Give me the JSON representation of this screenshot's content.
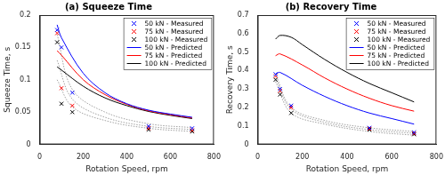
{
  "chart_data": [
    {
      "type": "line",
      "title": "(a) Squeeze Time",
      "x_label": "Rotation Speed, rpm",
      "y_label": "Squeeze Time, s",
      "xlim": [
        0,
        800
      ],
      "xticks": [
        0,
        200,
        400,
        600,
        800
      ],
      "ylim": [
        0,
        0.2
      ],
      "yticks": [
        0,
        0.05,
        0.1,
        0.15,
        0.2
      ],
      "grid": false,
      "legend": "upper right",
      "series": [
        {
          "name": "50 kN - Measured",
          "color": "#0000ff",
          "type": "scatter",
          "marker": "x",
          "x": [
            80,
            100,
            150,
            500,
            700
          ],
          "values": [
            0.177,
            0.15,
            0.08,
            0.028,
            0.025
          ]
        },
        {
          "name": "75 kN - Measured",
          "color": "#ff0000",
          "type": "scatter",
          "marker": "x",
          "x": [
            80,
            100,
            150,
            500,
            700
          ],
          "values": [
            0.172,
            0.087,
            0.06,
            0.025,
            0.022
          ]
        },
        {
          "name": "100 kN - Measured",
          "color": "#000000",
          "type": "scatter",
          "marker": "x",
          "x": [
            80,
            100,
            150,
            500,
            700
          ],
          "values": [
            0.158,
            0.063,
            0.05,
            0.023,
            0.02
          ]
        },
        {
          "name": "50 kN - Predicted",
          "color": "#0000ff",
          "type": "line",
          "line_style": "solid",
          "x": [
            80,
            100,
            200,
            300,
            400,
            500,
            600,
            700
          ],
          "values": [
            0.185,
            0.165,
            0.11,
            0.08,
            0.063,
            0.053,
            0.047,
            0.042
          ]
        },
        {
          "name": "75 kN - Predicted",
          "color": "#ff0000",
          "type": "line",
          "line_style": "solid",
          "x": [
            80,
            100,
            200,
            300,
            400,
            500,
            600,
            700
          ],
          "values": [
            0.145,
            0.138,
            0.1,
            0.077,
            0.062,
            0.052,
            0.046,
            0.041
          ]
        },
        {
          "name": "100 kN - Predicted",
          "color": "#000000",
          "type": "line",
          "line_style": "solid",
          "x": [
            80,
            100,
            200,
            300,
            400,
            500,
            600,
            700
          ],
          "values": [
            0.12,
            0.115,
            0.09,
            0.072,
            0.06,
            0.051,
            0.045,
            0.04
          ]
        },
        {
          "color": "#a0a0a0",
          "type": "line",
          "line_style": "dotted",
          "x": [
            80,
            150,
            300,
            500,
            700
          ],
          "values": [
            0.17,
            0.085,
            0.05,
            0.032,
            0.026
          ]
        },
        {
          "color": "#a0a0a0",
          "type": "line",
          "line_style": "dotted",
          "x": [
            80,
            150,
            300,
            500,
            700
          ],
          "values": [
            0.13,
            0.07,
            0.042,
            0.028,
            0.023
          ]
        },
        {
          "color": "#a0a0a0",
          "type": "line",
          "line_style": "dotted",
          "x": [
            80,
            150,
            300,
            500,
            700
          ],
          "values": [
            0.1,
            0.058,
            0.037,
            0.025,
            0.02
          ]
        }
      ]
    },
    {
      "type": "line",
      "title": "(b) Recovery Time",
      "x_label": "Rotation Speed, rpm",
      "y_label": "Recovery Time, s",
      "xlim": [
        0,
        800
      ],
      "xticks": [
        0,
        200,
        400,
        600,
        800
      ],
      "ylim": [
        0,
        0.7
      ],
      "yticks": [
        0,
        0.1,
        0.2,
        0.3,
        0.4,
        0.5,
        0.6,
        0.7
      ],
      "grid": false,
      "legend": "upper right",
      "series": [
        {
          "name": "50 kN - Measured",
          "color": "#0000ff",
          "type": "scatter",
          "marker": "x",
          "x": [
            80,
            100,
            150,
            500,
            700
          ],
          "values": [
            0.38,
            0.3,
            0.21,
            0.09,
            0.065
          ]
        },
        {
          "name": "75 kN - Measured",
          "color": "#ff0000",
          "type": "scatter",
          "marker": "x",
          "x": [
            80,
            100,
            150,
            500,
            700
          ],
          "values": [
            0.37,
            0.29,
            0.2,
            0.085,
            0.06
          ]
        },
        {
          "name": "100 kN - Measured",
          "color": "#000000",
          "type": "scatter",
          "marker": "x",
          "x": [
            80,
            100,
            150,
            500,
            700
          ],
          "values": [
            0.35,
            0.27,
            0.17,
            0.08,
            0.055
          ]
        },
        {
          "name": "50 kN - Predicted",
          "color": "#0000ff",
          "type": "line",
          "line_style": "solid",
          "x": [
            80,
            100,
            200,
            300,
            400,
            500,
            600,
            700
          ],
          "values": [
            0.38,
            0.39,
            0.32,
            0.26,
            0.21,
            0.17,
            0.14,
            0.11
          ]
        },
        {
          "name": "75 kN - Predicted",
          "color": "#ff0000",
          "type": "line",
          "line_style": "solid",
          "x": [
            80,
            100,
            200,
            300,
            400,
            500,
            600,
            700
          ],
          "values": [
            0.48,
            0.49,
            0.43,
            0.36,
            0.3,
            0.25,
            0.21,
            0.18
          ]
        },
        {
          "name": "100 kN - Predicted",
          "color": "#000000",
          "type": "line",
          "line_style": "solid",
          "x": [
            80,
            100,
            150,
            200,
            300,
            400,
            500,
            600,
            700
          ],
          "values": [
            0.57,
            0.59,
            0.58,
            0.54,
            0.46,
            0.39,
            0.33,
            0.28,
            0.23
          ]
        },
        {
          "color": "#a0a0a0",
          "type": "line",
          "line_style": "dotted",
          "x": [
            80,
            150,
            300,
            500,
            700
          ],
          "values": [
            0.38,
            0.2,
            0.13,
            0.09,
            0.07
          ]
        },
        {
          "color": "#a0a0a0",
          "type": "line",
          "line_style": "dotted",
          "x": [
            80,
            150,
            300,
            500,
            700
          ],
          "values": [
            0.36,
            0.19,
            0.12,
            0.08,
            0.06
          ]
        },
        {
          "color": "#a0a0a0",
          "type": "line",
          "line_style": "dotted",
          "x": [
            80,
            150,
            300,
            500,
            700
          ],
          "values": [
            0.34,
            0.17,
            0.11,
            0.07,
            0.05
          ]
        }
      ]
    }
  ]
}
